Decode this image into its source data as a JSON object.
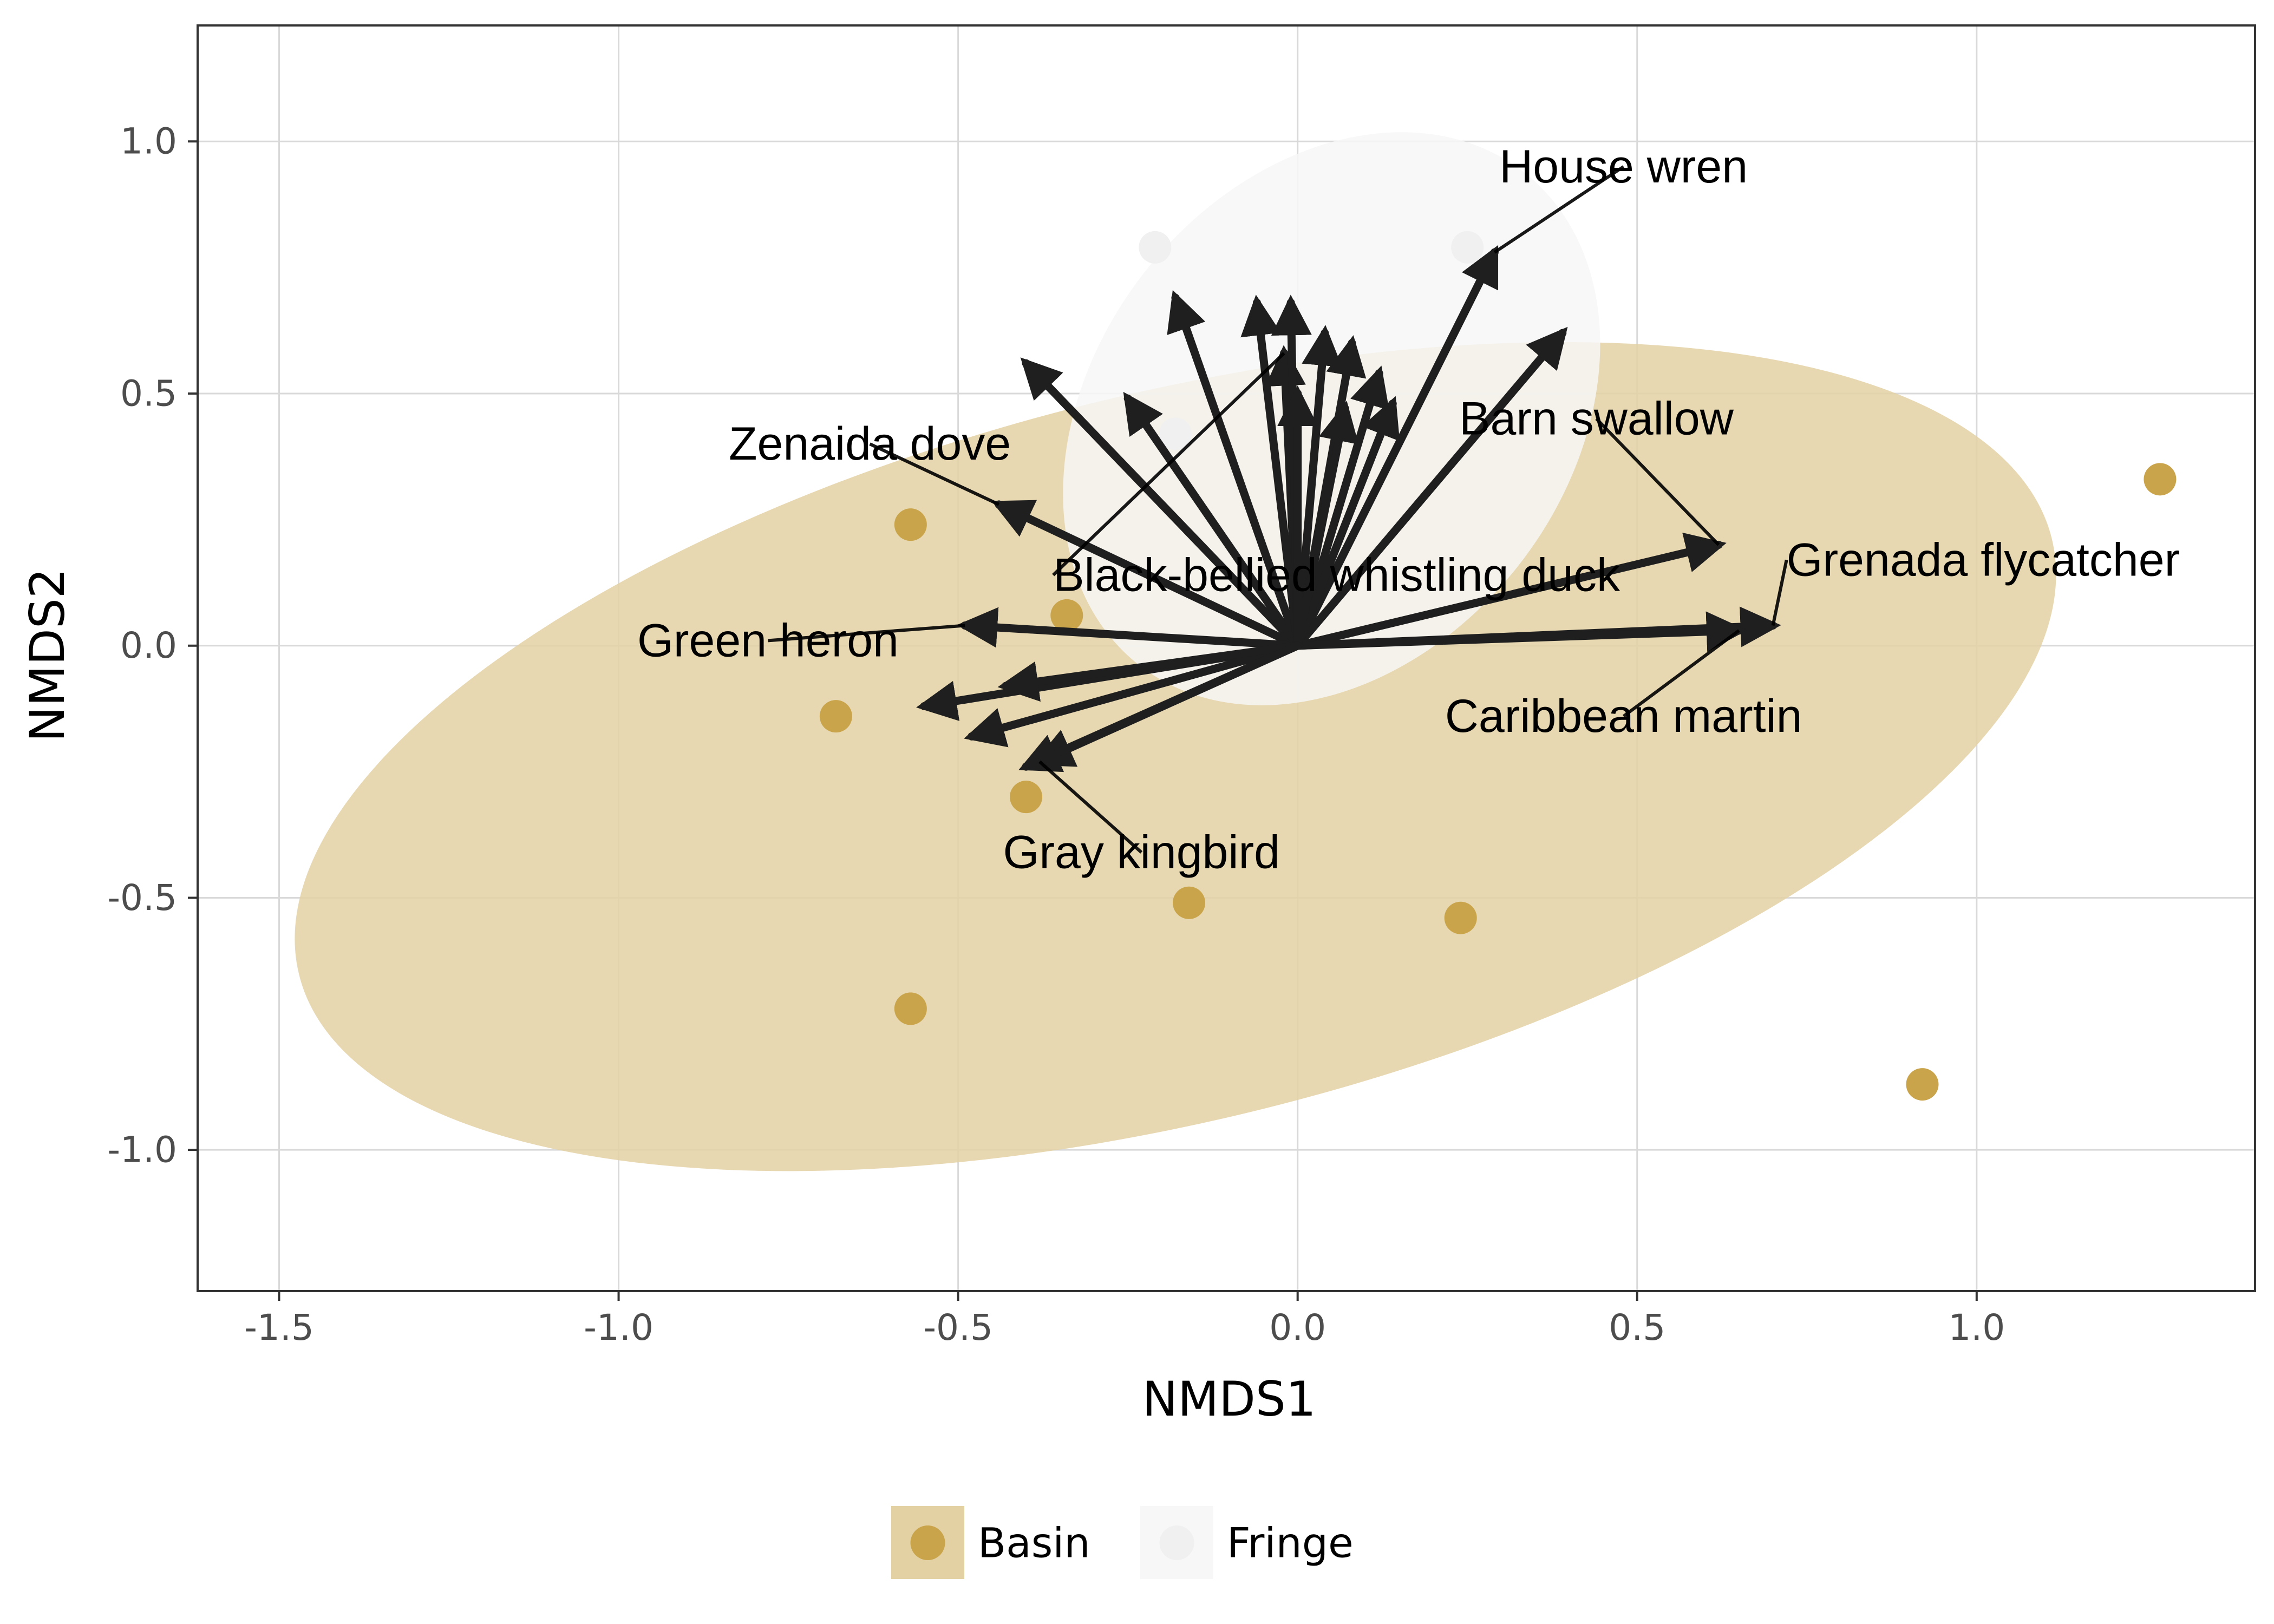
{
  "chart_data": {
    "type": "scatter",
    "title": "",
    "xlabel": "NMDS1",
    "ylabel": "NMDS2",
    "xlim": [
      -1.62,
      1.41
    ],
    "ylim": [
      -1.28,
      1.23
    ],
    "xticks": [
      -1.5,
      -1.0,
      -0.5,
      0.0,
      0.5,
      1.0
    ],
    "xtick_labels": [
      "-1.5",
      "-1.0",
      "-0.5",
      "0.0",
      "0.5",
      "1.0"
    ],
    "yticks": [
      -1.0,
      -0.5,
      0.0,
      0.5,
      1.0
    ],
    "ytick_labels": [
      "-1.0",
      "-0.5",
      "0.0",
      "0.5",
      "1.0"
    ],
    "grid": true,
    "legend_position": "bottom",
    "series": [
      {
        "name": "Basin",
        "color": "#c9a44a",
        "ellipse_color": "#e3d1a3",
        "points": [
          {
            "x": -0.57,
            "y": 0.24
          },
          {
            "x": -0.34,
            "y": 0.06
          },
          {
            "x": -0.68,
            "y": -0.14
          },
          {
            "x": -0.4,
            "y": -0.3
          },
          {
            "x": -0.16,
            "y": -0.51
          },
          {
            "x": 0.24,
            "y": -0.54
          },
          {
            "x": -0.57,
            "y": -0.72
          },
          {
            "x": 0.92,
            "y": -0.87
          },
          {
            "x": 1.27,
            "y": 0.33
          }
        ],
        "ellipse": {
          "cx": -0.18,
          "cy": -0.22,
          "rx": 1.33,
          "ry": 0.72,
          "angle_deg": -14
        }
      },
      {
        "name": "Fringe",
        "color": "#f0f0f0",
        "ellipse_color": "#f7f7f7",
        "points": [
          {
            "x": -0.21,
            "y": 0.79
          },
          {
            "x": 0.25,
            "y": 0.79
          },
          {
            "x": -0.18,
            "y": 0.42
          }
        ],
        "ellipse": {
          "cx": 0.05,
          "cy": 0.45,
          "rx": 0.35,
          "ry": 0.62,
          "angle_deg": 38
        }
      }
    ],
    "vectors": [
      {
        "x": 0.29,
        "y": 0.78,
        "label": "House wren",
        "label_x": 0.48,
        "label_y": 0.95,
        "label_anchor": "middle"
      },
      {
        "x": 0.62,
        "y": 0.2,
        "label": "Barn swallow",
        "label_x": 0.44,
        "label_y": 0.45,
        "label_anchor": "middle"
      },
      {
        "x": 0.7,
        "y": 0.04,
        "label": "Grenada flycatcher",
        "label_x": 0.72,
        "label_y": 0.17,
        "label_anchor": "start"
      },
      {
        "x": 0.65,
        "y": 0.03,
        "label": "Caribbean martin",
        "label_x": 0.48,
        "label_y": -0.14,
        "label_anchor": "middle"
      },
      {
        "x": -0.44,
        "y": 0.28,
        "label": "Zenaida dove",
        "label_x": -0.63,
        "label_y": 0.4,
        "label_anchor": "middle"
      },
      {
        "x": -0.49,
        "y": 0.04,
        "label": "Green heron",
        "label_x": -0.78,
        "label_y": 0.01,
        "label_anchor": "middle"
      },
      {
        "x": -0.38,
        "y": -0.23,
        "label": "Gray kingbird",
        "label_x": -0.23,
        "label_y": -0.41,
        "label_anchor": "middle"
      },
      {
        "x": -0.02,
        "y": 0.58,
        "label": "Black-bellied whistling duck",
        "label_x": -0.36,
        "label_y": 0.14,
        "label_anchor": "start"
      },
      {
        "x": 0.39,
        "y": 0.62,
        "label": ""
      },
      {
        "x": -0.4,
        "y": 0.56,
        "label": ""
      },
      {
        "x": -0.25,
        "y": 0.49,
        "label": ""
      },
      {
        "x": -0.18,
        "y": 0.69,
        "label": ""
      },
      {
        "x": -0.06,
        "y": 0.68,
        "label": ""
      },
      {
        "x": -0.01,
        "y": 0.68,
        "label": ""
      },
      {
        "x": 0.04,
        "y": 0.62,
        "label": ""
      },
      {
        "x": 0.08,
        "y": 0.6,
        "label": ""
      },
      {
        "x": 0.12,
        "y": 0.54,
        "label": ""
      },
      {
        "x": 0.14,
        "y": 0.48,
        "label": ""
      },
      {
        "x": 0.07,
        "y": 0.47,
        "label": ""
      },
      {
        "x": 0.0,
        "y": 0.5,
        "label": ""
      },
      {
        "x": -0.55,
        "y": -0.12,
        "label": ""
      },
      {
        "x": -0.48,
        "y": -0.18,
        "label": ""
      },
      {
        "x": -0.43,
        "y": -0.08,
        "label": ""
      },
      {
        "x": -0.4,
        "y": -0.24,
        "label": ""
      }
    ]
  }
}
